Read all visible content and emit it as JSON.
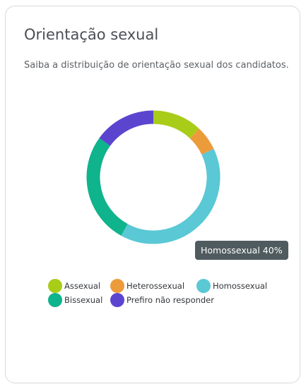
{
  "card": {
    "title": "Orientação sexual",
    "subtitle": "Saiba a distribuição de orientação sexual dos candidatos."
  },
  "tooltip": {
    "label": "Homossexual 40%"
  },
  "legend": {
    "items": [
      {
        "label": "Assexual"
      },
      {
        "label": "Heterossexual"
      },
      {
        "label": "Homossexual"
      },
      {
        "label": "Bissexual"
      },
      {
        "label": "Prefiro não responder"
      }
    ]
  },
  "chart_data": {
    "type": "pie",
    "donut": true,
    "title": "",
    "categories": [
      "Assexual",
      "Heterossexual",
      "Homossexual",
      "Bissexual",
      "Prefiro não responder"
    ],
    "values": [
      12,
      6,
      40,
      27,
      15
    ],
    "unit": "%",
    "colors": [
      "#a9cc18",
      "#ec9b3b",
      "#5ac8d5",
      "#0fb38c",
      "#5b45cf"
    ],
    "legend_position": "bottom",
    "highlighted": "Homossexual"
  }
}
